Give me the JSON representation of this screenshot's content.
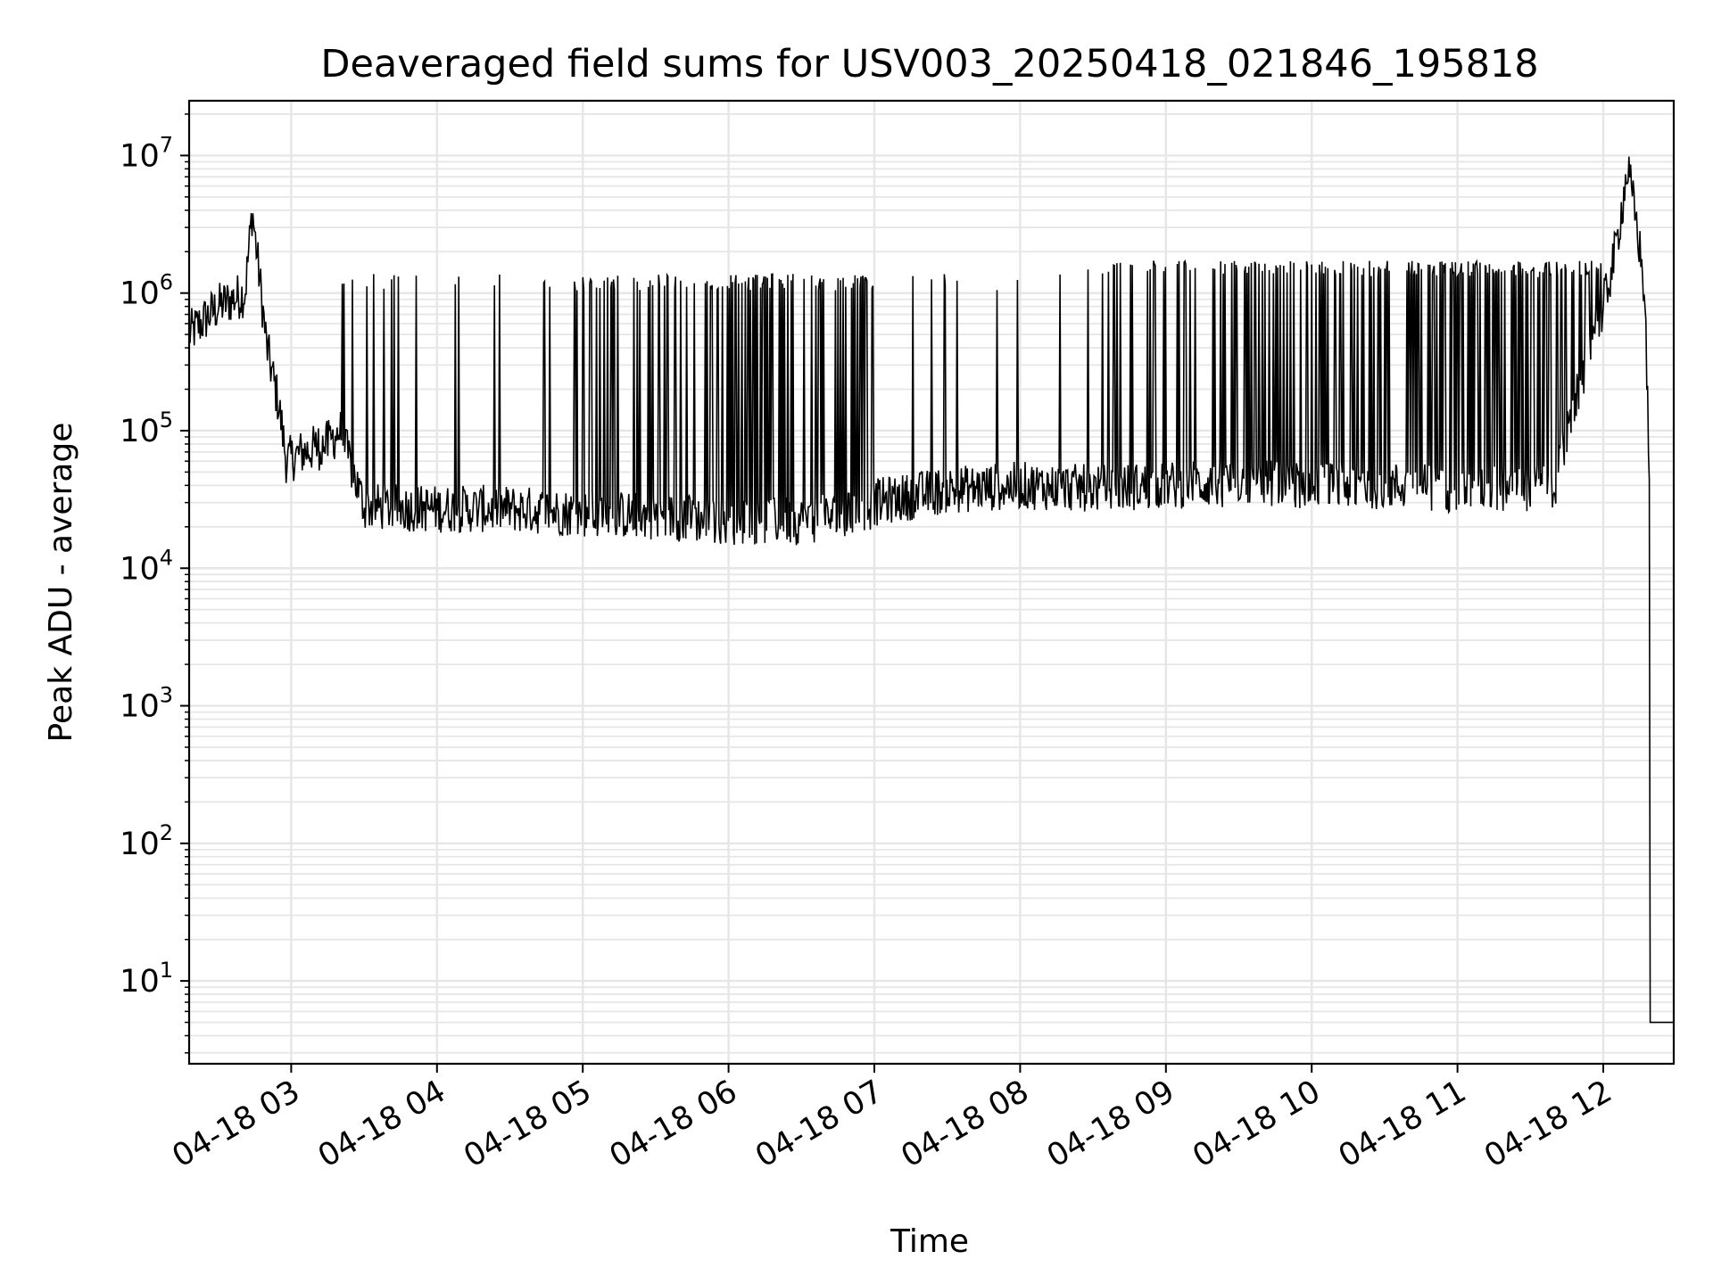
{
  "chart_data": {
    "type": "line",
    "title": "Deaveraged field sums for USV003_20250418_021846_195818",
    "xlabel": "Time",
    "ylabel": "Peak ADU - average",
    "y_scale": "log",
    "ylim": [
      2.5,
      25000000
    ],
    "xlim": [
      "04-18 02:18",
      "04-18 12:29"
    ],
    "x_tick_labels": [
      "04-18 03",
      "04-18 04",
      "04-18 05",
      "04-18 06",
      "04-18 07",
      "04-18 08",
      "04-18 09",
      "04-18 10",
      "04-18 11",
      "04-18 12"
    ],
    "y_tick_labels": [
      {
        "base": "10",
        "exp": "1",
        "value": 10
      },
      {
        "base": "10",
        "exp": "2",
        "value": 100
      },
      {
        "base": "10",
        "exp": "3",
        "value": 1000
      },
      {
        "base": "10",
        "exp": "4",
        "value": 10000
      },
      {
        "base": "10",
        "exp": "5",
        "value": 100000
      },
      {
        "base": "10",
        "exp": "6",
        "value": 1000000
      },
      {
        "base": "10",
        "exp": "7",
        "value": 10000000
      }
    ],
    "grid": true,
    "legend": "none",
    "line_color": "#000000",
    "series": [
      {
        "x": [
          "04-18 02:18",
          "04-18 02:30",
          "04-18 02:41",
          "04-18 02:44",
          "04-18 02:50",
          "04-18 02:55",
          "04-18 02:58",
          "04-18 03:05",
          "04-18 03:15",
          "04-18 03:20",
          "04-18 03:30",
          "04-18 04:00",
          "04-18 04:30",
          "04-18 05:00",
          "04-18 05:30",
          "04-18 06:00",
          "04-18 06:30",
          "04-18 06:55",
          "04-18 07:00",
          "04-18 07:30",
          "04-18 08:00",
          "04-18 08:30",
          "04-18 09:00",
          "04-18 09:30",
          "04-18 10:00",
          "04-18 10:30",
          "04-18 11:00",
          "04-18 11:30",
          "04-18 11:40",
          "04-18 11:50",
          "04-18 12:00",
          "04-18 12:05",
          "04-18 12:10",
          "04-18 12:14",
          "04-18 12:17",
          "04-18 12:19",
          "04-18 12:20",
          "04-18 12:29"
        ],
        "y": [
          500000,
          800000,
          1000000,
          4000000,
          400000,
          150000,
          60000,
          70000,
          80000,
          100000,
          28000,
          27000,
          27000,
          25000,
          24000,
          22000,
          22000,
          25000,
          30000,
          37000,
          40000,
          38000,
          40000,
          42000,
          40000,
          40000,
          38000,
          38000,
          40000,
          200000,
          800000,
          2000000,
          8000000,
          3000000,
          1000000,
          50000,
          5,
          5
        ]
      }
    ],
    "spikes_note": ""
  }
}
